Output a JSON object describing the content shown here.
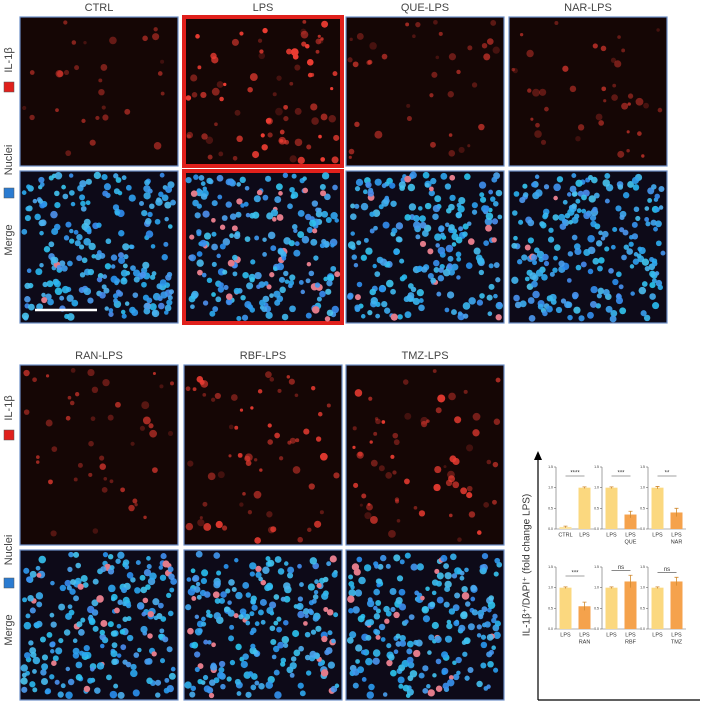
{
  "top": {
    "columns": [
      "CTRL",
      "LPS",
      "QUE-LPS",
      "NAR-LPS"
    ],
    "row_labels": [
      "IL-1β",
      "Nuclei",
      "Merge"
    ]
  },
  "bottom": {
    "columns": [
      "RAN-LPS",
      "RBF-LPS",
      "TMZ-LPS"
    ],
    "row_labels": [
      "IL-1β",
      "Nuclei",
      "Merge"
    ]
  },
  "y_label": "IL-1β⁺/DAPI⁺ (fold change LPS)",
  "chart_data": [
    {
      "type": "bar",
      "categories": [
        [
          "CTRL"
        ],
        [
          "LPS"
        ]
      ],
      "values": [
        0.05,
        1.0
      ],
      "errors": [
        0.02,
        0.02
      ],
      "colors": [
        "#fbe3a0",
        "#fbd87f"
      ],
      "annotation": "****",
      "ylim": [
        0,
        1.5
      ],
      "yticks": [
        {
          "value": 0,
          "label": "0.0"
        },
        0.5,
        {
          "value": 1,
          "label": "1.0"
        },
        1.5
      ]
    },
    {
      "type": "bar",
      "categories": [
        [
          "LPS"
        ],
        [
          "LPS",
          "QUE"
        ]
      ],
      "values": [
        1.0,
        0.35
      ],
      "errors": [
        0.02,
        0.08
      ],
      "colors": [
        "#fbd87f",
        "#f5a24c"
      ],
      "annotation": "***",
      "ylim": [
        0,
        1.5
      ],
      "yticks": [
        {
          "value": 0,
          "label": "0.0"
        },
        0.5,
        {
          "value": 1,
          "label": "1.0"
        },
        1.5
      ]
    },
    {
      "type": "bar",
      "categories": [
        [
          "LPS"
        ],
        [
          "LPS",
          "NAR"
        ]
      ],
      "values": [
        1.0,
        0.4
      ],
      "errors": [
        0.03,
        0.1
      ],
      "colors": [
        "#fbd87f",
        "#f5a24c"
      ],
      "annotation": "**",
      "ylim": [
        0,
        1.5
      ],
      "yticks": [
        {
          "value": 0,
          "label": "0.0"
        },
        0.5,
        {
          "value": 1,
          "label": "1.0"
        },
        1.5
      ]
    },
    {
      "type": "bar",
      "categories": [
        [
          "LPS"
        ],
        [
          "LPS",
          "RAN"
        ]
      ],
      "values": [
        1.0,
        0.55
      ],
      "errors": [
        0.02,
        0.1
      ],
      "colors": [
        "#fbd87f",
        "#f5a24c"
      ],
      "annotation": "***",
      "ylim": [
        0,
        1.5
      ],
      "yticks": [
        {
          "value": 0,
          "label": "0.0"
        },
        0.5,
        {
          "value": 1,
          "label": "1.0"
        },
        1.5
      ]
    },
    {
      "type": "bar",
      "categories": [
        [
          "LPS"
        ],
        [
          "LPS",
          "RBF"
        ]
      ],
      "values": [
        1.0,
        1.15
      ],
      "errors": [
        0.02,
        0.15
      ],
      "colors": [
        "#fbd87f",
        "#f5a24c"
      ],
      "annotation": "ns",
      "ylim": [
        0,
        1.5
      ],
      "yticks": [
        {
          "value": 0,
          "label": "0.0"
        },
        0.5,
        {
          "value": 1,
          "label": "1.0"
        },
        1.5
      ]
    },
    {
      "type": "bar",
      "categories": [
        [
          "LPS"
        ],
        [
          "LPS",
          "TMZ"
        ]
      ],
      "values": [
        1.0,
        1.15
      ],
      "errors": [
        0.02,
        0.1
      ],
      "colors": [
        "#fbd87f",
        "#f5a24c"
      ],
      "annotation": "ns",
      "ylim": [
        0,
        1.5
      ],
      "yticks": [
        {
          "value": 0,
          "label": "0.0"
        },
        0.5,
        {
          "value": 1,
          "label": "1.0"
        },
        1.5
      ]
    }
  ]
}
